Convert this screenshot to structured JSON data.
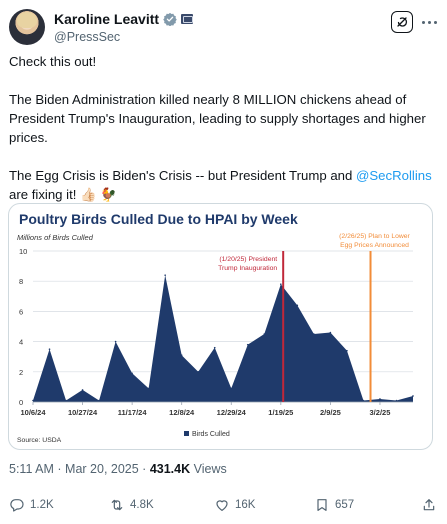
{
  "author": {
    "name": "Karoline Leavitt",
    "handle": "@PressSec"
  },
  "tweet": {
    "line1": "Check this out!",
    "line2": "The Biden Administration killed nearly 8 MILLION chickens ahead of President Trump's Inauguration, leading to supply shortages and higher prices.",
    "line3_before": "The Egg Crisis is Biden's Crisis -- but President Trump and ",
    "line3_mention": "@SecRollins",
    "line3_after": " are fixing it! 👍🏻 🐓"
  },
  "meta": {
    "time": "5:11 AM · Mar 20, 2025 · ",
    "views_count": "431.4K",
    "views_label": " Views"
  },
  "actions": {
    "replies": "1.2K",
    "reposts": "4.8K",
    "likes": "16K",
    "bookmarks": "657"
  },
  "colors": {
    "area": "#1f3a6b",
    "title": "#1f3a6b",
    "line_red": "#c0283a",
    "line_orange": "#f28c38",
    "text_primary": "#0f1419",
    "text_secondary": "#536471",
    "accent": "#1d9bf0"
  },
  "chart_data": {
    "type": "area",
    "title": "Poultry Birds Culled Due to HPAI by Week",
    "ylabel": "Millions of Birds Culled",
    "source": "Source: USDA",
    "legend": "Birds Culled",
    "legend_position": "bottom",
    "ylim": [
      0,
      10
    ],
    "yticks": [
      0,
      2,
      4,
      6,
      8,
      10
    ],
    "xtick_labels": [
      "10/6/24",
      "10/27/24",
      "11/17/24",
      "12/8/24",
      "12/29/24",
      "1/19/25",
      "2/9/25",
      "3/2/25"
    ],
    "weeks": [
      "10/6/24",
      "10/13/24",
      "10/20/24",
      "10/27/24",
      "11/3/24",
      "11/10/24",
      "11/17/24",
      "11/24/24",
      "12/1/24",
      "12/8/24",
      "12/15/24",
      "12/22/24",
      "12/29/24",
      "1/5/25",
      "1/12/25",
      "1/19/25",
      "1/26/25",
      "2/2/25",
      "2/9/25",
      "2/16/25",
      "2/23/25",
      "3/2/25",
      "3/9/25",
      "3/16/25"
    ],
    "values": [
      0.1,
      3.5,
      0.1,
      0.8,
      0.1,
      4.0,
      1.9,
      0.9,
      8.4,
      3.1,
      2.0,
      3.6,
      0.9,
      3.8,
      4.5,
      7.8,
      6.4,
      4.5,
      4.6,
      3.4,
      0.1,
      0.2,
      0.1,
      0.4
    ],
    "annotations": [
      {
        "date": "1/20/25",
        "line1": "(1/20/25) President",
        "line2": "Trump Inauguration",
        "color": "#c0283a"
      },
      {
        "date": "2/26/25",
        "line1": "(2/26/25) Plan to Lower",
        "line2": "Egg Prices Announced",
        "color": "#f28c38"
      }
    ],
    "grid": true
  }
}
